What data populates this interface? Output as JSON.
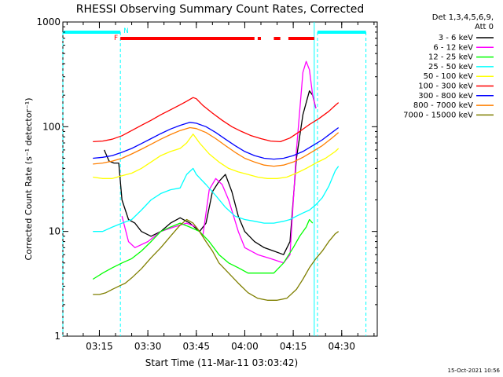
{
  "chart_data": {
    "type": "line",
    "title": "RHESSI Observing Summary Count Rates, Corrected",
    "xlabel": "Start Time (11-Mar-11 03:03:42)",
    "ylabel": "Corrected Count Rate (s⁻¹ detector⁻¹)",
    "footer": "15-Oct-2021 10:56",
    "yscale": "log",
    "ylim": [
      1,
      1000
    ],
    "xlim": [
      "03:03:42",
      "04:41:00"
    ],
    "y_ticks": [
      {
        "value": 1,
        "label": "1"
      },
      {
        "value": 10,
        "label": "10"
      },
      {
        "value": 100,
        "label": "100"
      },
      {
        "value": 1000,
        "label": "1000"
      }
    ],
    "x_ticks": [
      {
        "t": "03:15",
        "label": "03:15"
      },
      {
        "t": "03:30",
        "label": "03:30"
      },
      {
        "t": "03:45",
        "label": "03:45"
      },
      {
        "t": "04:00",
        "label": "04:00"
      },
      {
        "t": "04:15",
        "label": "04:15"
      },
      {
        "t": "04:30",
        "label": "04:30"
      }
    ],
    "legend_header": [
      "Det 1,3,4,5,6,9,",
      "Att 0"
    ],
    "legend_position": "right",
    "series": [
      {
        "name": "3 - 6 keV",
        "color": "#000000",
        "points": [
          [
            "03:16:30",
            60
          ],
          [
            "03:18:00",
            47
          ],
          [
            "03:19:30",
            45
          ],
          [
            "03:21:00",
            45
          ],
          [
            "03:22:00",
            20
          ],
          [
            "03:24:00",
            13
          ],
          [
            "03:26:00",
            12
          ],
          [
            "03:28:00",
            10
          ],
          [
            "03:31:00",
            9
          ],
          [
            "03:34:00",
            10
          ],
          [
            "03:37:00",
            12
          ],
          [
            "03:40:00",
            13.5
          ],
          [
            "03:43:00",
            12
          ],
          [
            "03:46:00",
            10
          ],
          [
            "03:48:00",
            12
          ],
          [
            "03:50:00",
            24
          ],
          [
            "03:52:00",
            30
          ],
          [
            "03:54:00",
            35
          ],
          [
            "03:56:00",
            24
          ],
          [
            "03:58:00",
            14
          ],
          [
            "04:00:00",
            10
          ],
          [
            "04:03:00",
            8
          ],
          [
            "04:06:00",
            7
          ],
          [
            "04:09:00",
            6.5
          ],
          [
            "04:12:00",
            6
          ],
          [
            "04:14:00",
            8
          ],
          [
            "04:16:00",
            50
          ],
          [
            "04:18:00",
            130
          ],
          [
            "04:20:00",
            220
          ],
          [
            "04:21:00",
            200
          ],
          [
            "04:22:00",
            150
          ]
        ]
      },
      {
        "name": "6 - 12 keV",
        "color": "#ff00ff",
        "points": [
          [
            "03:22:00",
            14
          ],
          [
            "03:24:00",
            8
          ],
          [
            "03:26:00",
            7
          ],
          [
            "03:30:00",
            8
          ],
          [
            "03:34:00",
            10
          ],
          [
            "03:38:00",
            11
          ],
          [
            "03:42:00",
            12
          ],
          [
            "03:45:00",
            11
          ],
          [
            "03:47:00",
            9
          ],
          [
            "03:49:00",
            25
          ],
          [
            "03:51:00",
            32
          ],
          [
            "03:53:00",
            28
          ],
          [
            "03:55:00",
            20
          ],
          [
            "03:58:00",
            10
          ],
          [
            "04:00:00",
            7
          ],
          [
            "04:04:00",
            6
          ],
          [
            "04:08:00",
            5.5
          ],
          [
            "04:12:00",
            5
          ],
          [
            "04:14:00",
            6
          ],
          [
            "04:16:00",
            60
          ],
          [
            "04:18:00",
            330
          ],
          [
            "04:19:00",
            420
          ],
          [
            "04:20:00",
            350
          ],
          [
            "04:21:00",
            200
          ],
          [
            "04:22:00",
            150
          ]
        ]
      },
      {
        "name": "12 - 25 keV",
        "color": "#00ff00",
        "points": [
          [
            "03:13:00",
            3.5
          ],
          [
            "03:16:00",
            4
          ],
          [
            "03:19:00",
            4.5
          ],
          [
            "03:22:00",
            5
          ],
          [
            "03:25:00",
            5.5
          ],
          [
            "03:28:00",
            6.5
          ],
          [
            "03:31:00",
            8
          ],
          [
            "03:34:00",
            10
          ],
          [
            "03:37:00",
            11
          ],
          [
            "03:40:00",
            12
          ],
          [
            "03:43:00",
            11
          ],
          [
            "03:46:00",
            10
          ],
          [
            "03:49:00",
            8
          ],
          [
            "03:52:00",
            6
          ],
          [
            "03:55:00",
            5
          ],
          [
            "03:58:00",
            4.5
          ],
          [
            "04:01:00",
            4
          ],
          [
            "04:05:00",
            4
          ],
          [
            "04:09:00",
            4
          ],
          [
            "04:12:00",
            5
          ],
          [
            "04:15:00",
            7
          ],
          [
            "04:17:00",
            9
          ],
          [
            "04:19:00",
            11
          ],
          [
            "04:20:00",
            13
          ],
          [
            "04:21:00",
            12
          ]
        ]
      },
      {
        "name": "25 - 50 keV",
        "color": "#00ffff",
        "points": [
          [
            "03:13:00",
            10
          ],
          [
            "03:16:00",
            10
          ],
          [
            "03:19:00",
            11
          ],
          [
            "03:22:00",
            12
          ],
          [
            "03:25:00",
            13
          ],
          [
            "03:28:00",
            16
          ],
          [
            "03:31:00",
            20
          ],
          [
            "03:34:00",
            23
          ],
          [
            "03:37:00",
            25
          ],
          [
            "03:40:00",
            26
          ],
          [
            "03:42:00",
            35
          ],
          [
            "03:44:00",
            40
          ],
          [
            "03:45:00",
            35
          ],
          [
            "03:48:00",
            28
          ],
          [
            "03:51:00",
            22
          ],
          [
            "03:54:00",
            17
          ],
          [
            "03:57:00",
            14
          ],
          [
            "04:00:00",
            13
          ],
          [
            "04:03:00",
            12.5
          ],
          [
            "04:06:00",
            12
          ],
          [
            "04:09:00",
            12
          ],
          [
            "04:12:00",
            12.5
          ],
          [
            "04:14:00",
            13
          ],
          [
            "04:16:00",
            14
          ],
          [
            "04:18:00",
            15
          ],
          [
            "04:20:00",
            16
          ],
          [
            "04:22:00",
            18
          ],
          [
            "04:24:00",
            21
          ],
          [
            "04:26:00",
            27
          ],
          [
            "04:28:00",
            38
          ],
          [
            "04:29:00",
            42
          ]
        ]
      },
      {
        "name": "50 - 100 keV",
        "color": "#ffff00",
        "points": [
          [
            "03:13:00",
            33
          ],
          [
            "03:16:00",
            32
          ],
          [
            "03:19:00",
            32
          ],
          [
            "03:22:00",
            34
          ],
          [
            "03:25:00",
            36
          ],
          [
            "03:28:00",
            40
          ],
          [
            "03:31:00",
            46
          ],
          [
            "03:34:00",
            53
          ],
          [
            "03:37:00",
            58
          ],
          [
            "03:40:00",
            62
          ],
          [
            "03:42:00",
            70
          ],
          [
            "03:44:00",
            85
          ],
          [
            "03:46:00",
            70
          ],
          [
            "03:49:00",
            55
          ],
          [
            "03:52:00",
            46
          ],
          [
            "03:55:00",
            40
          ],
          [
            "03:58:00",
            37
          ],
          [
            "04:01:00",
            35
          ],
          [
            "04:04:00",
            33
          ],
          [
            "04:07:00",
            32
          ],
          [
            "04:10:00",
            32
          ],
          [
            "04:13:00",
            33
          ],
          [
            "04:16:00",
            36
          ],
          [
            "04:19:00",
            40
          ],
          [
            "04:22:00",
            45
          ],
          [
            "04:25:00",
            50
          ],
          [
            "04:28:00",
            58
          ],
          [
            "04:29:00",
            62
          ]
        ]
      },
      {
        "name": "100 - 300 keV",
        "color": "#ff0000",
        "points": [
          [
            "03:13:00",
            72
          ],
          [
            "03:16:00",
            73
          ],
          [
            "03:19:00",
            76
          ],
          [
            "03:22:00",
            82
          ],
          [
            "03:25:00",
            92
          ],
          [
            "03:28:00",
            103
          ],
          [
            "03:31:00",
            115
          ],
          [
            "03:34:00",
            130
          ],
          [
            "03:37:00",
            145
          ],
          [
            "03:40:00",
            162
          ],
          [
            "03:42:00",
            175
          ],
          [
            "03:44:00",
            190
          ],
          [
            "03:45:00",
            185
          ],
          [
            "03:47:00",
            160
          ],
          [
            "03:50:00",
            135
          ],
          [
            "03:53:00",
            115
          ],
          [
            "03:56:00",
            100
          ],
          [
            "03:59:00",
            90
          ],
          [
            "04:02:00",
            82
          ],
          [
            "04:05:00",
            77
          ],
          [
            "04:08:00",
            73
          ],
          [
            "04:11:00",
            72
          ],
          [
            "04:14:00",
            78
          ],
          [
            "04:17:00",
            90
          ],
          [
            "04:20:00",
            105
          ],
          [
            "04:23:00",
            120
          ],
          [
            "04:26:00",
            140
          ],
          [
            "04:28:00",
            160
          ],
          [
            "04:29:00",
            170
          ]
        ]
      },
      {
        "name": "300 - 800 keV",
        "color": "#0000ff",
        "points": [
          [
            "03:13:00",
            50
          ],
          [
            "03:16:00",
            51
          ],
          [
            "03:19:00",
            53
          ],
          [
            "03:22:00",
            57
          ],
          [
            "03:25:00",
            62
          ],
          [
            "03:28:00",
            69
          ],
          [
            "03:31:00",
            77
          ],
          [
            "03:34:00",
            86
          ],
          [
            "03:37:00",
            95
          ],
          [
            "03:40:00",
            103
          ],
          [
            "03:43:00",
            110
          ],
          [
            "03:45:00",
            108
          ],
          [
            "03:48:00",
            100
          ],
          [
            "03:51:00",
            88
          ],
          [
            "03:54:00",
            76
          ],
          [
            "03:57:00",
            66
          ],
          [
            "04:00:00",
            58
          ],
          [
            "04:03:00",
            53
          ],
          [
            "04:06:00",
            50
          ],
          [
            "04:09:00",
            49
          ],
          [
            "04:12:00",
            50
          ],
          [
            "04:15:00",
            53
          ],
          [
            "04:18:00",
            58
          ],
          [
            "04:21:00",
            66
          ],
          [
            "04:24:00",
            75
          ],
          [
            "04:27:00",
            88
          ],
          [
            "04:29:00",
            98
          ]
        ]
      },
      {
        "name": "800 - 7000 keV",
        "color": "#ff7f00",
        "points": [
          [
            "03:13:00",
            44
          ],
          [
            "03:16:00",
            45
          ],
          [
            "03:19:00",
            47
          ],
          [
            "03:22:00",
            50
          ],
          [
            "03:25:00",
            55
          ],
          [
            "03:28:00",
            61
          ],
          [
            "03:31:00",
            68
          ],
          [
            "03:34:00",
            76
          ],
          [
            "03:37:00",
            84
          ],
          [
            "03:40:00",
            92
          ],
          [
            "03:43:00",
            98
          ],
          [
            "03:45:00",
            96
          ],
          [
            "03:48:00",
            88
          ],
          [
            "03:51:00",
            77
          ],
          [
            "03:54:00",
            66
          ],
          [
            "03:57:00",
            57
          ],
          [
            "04:00:00",
            50
          ],
          [
            "04:03:00",
            46
          ],
          [
            "04:06:00",
            43
          ],
          [
            "04:09:00",
            42
          ],
          [
            "04:12:00",
            43
          ],
          [
            "04:15:00",
            46
          ],
          [
            "04:18:00",
            51
          ],
          [
            "04:21:00",
            58
          ],
          [
            "04:24:00",
            66
          ],
          [
            "04:27:00",
            78
          ],
          [
            "04:29:00",
            88
          ]
        ]
      },
      {
        "name": "7000 - 15000 keV",
        "color": "#7f7f00",
        "points": [
          [
            "03:13:00",
            2.5
          ],
          [
            "03:15:00",
            2.5
          ],
          [
            "03:17:00",
            2.6
          ],
          [
            "03:19:00",
            2.8
          ],
          [
            "03:21:00",
            3.0
          ],
          [
            "03:23:00",
            3.2
          ],
          [
            "03:25:00",
            3.6
          ],
          [
            "03:28:00",
            4.4
          ],
          [
            "03:31:00",
            5.6
          ],
          [
            "03:34:00",
            7.0
          ],
          [
            "03:37:00",
            9.0
          ],
          [
            "03:40:00",
            11.5
          ],
          [
            "03:42:00",
            13
          ],
          [
            "03:44:00",
            12
          ],
          [
            "03:46:00",
            10
          ],
          [
            "03:48:00",
            8
          ],
          [
            "03:50:00",
            6.5
          ],
          [
            "03:52:00",
            5
          ],
          [
            "03:55:00",
            4
          ],
          [
            "03:58:00",
            3.2
          ],
          [
            "04:01:00",
            2.6
          ],
          [
            "04:04:00",
            2.3
          ],
          [
            "04:07:00",
            2.2
          ],
          [
            "04:10:00",
            2.2
          ],
          [
            "04:13:00",
            2.3
          ],
          [
            "04:16:00",
            2.8
          ],
          [
            "04:18:00",
            3.5
          ],
          [
            "04:20:00",
            4.5
          ],
          [
            "04:22:00",
            5.5
          ],
          [
            "04:24:00",
            6.5
          ],
          [
            "04:26:00",
            8
          ],
          [
            "04:28:00",
            9.5
          ],
          [
            "04:29:00",
            10
          ]
        ]
      }
    ],
    "annotations": {
      "saa": {
        "color": "#00ffff",
        "label": "N",
        "label_at": "03:21:30",
        "bars": [
          [
            "03:03:42",
            "03:21:30"
          ],
          [
            "04:22:30",
            "04:37:30"
          ]
        ],
        "boundaries": [
          "03:03:42",
          "03:21:30",
          "04:22:30",
          "04:37:30"
        ]
      },
      "flare": {
        "color": "#ff0000",
        "label": "F",
        "label_at": "03:21:30",
        "bars": [
          [
            "03:21:30",
            "04:03:00"
          ],
          [
            "04:04:00",
            "04:05:00"
          ],
          [
            "04:09:00",
            "04:11:00"
          ],
          [
            "04:13:30",
            "04:21:30"
          ]
        ]
      },
      "attenuator_line": {
        "color": "#00ffff",
        "t": "04:21:30"
      }
    }
  }
}
